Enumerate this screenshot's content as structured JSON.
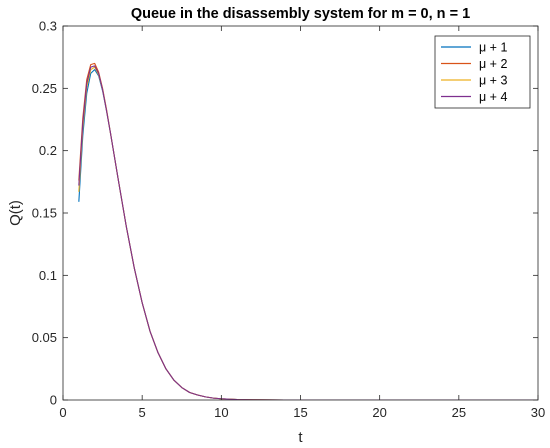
{
  "chart_data": {
    "type": "line",
    "title": "Queue in the disassembly system for m = 0, n = 1",
    "xlabel": "t",
    "ylabel": "Q(t)",
    "xlim": [
      0,
      30
    ],
    "ylim": [
      0,
      0.3
    ],
    "xticks": [
      "0",
      "5",
      "10",
      "15",
      "20",
      "25",
      "30"
    ],
    "yticks": [
      "0",
      "0.05",
      "0.1",
      "0.15",
      "0.2",
      "0.25",
      "0.3"
    ],
    "grid": false,
    "legend_position": "top-right",
    "series": [
      {
        "name": "μ + 1",
        "color": "#0072BD",
        "x": [
          1.0,
          1.25,
          1.5,
          1.75,
          2.0,
          2.25,
          2.5,
          2.75,
          3.0,
          3.5,
          4.0,
          4.5,
          5.0,
          5.5,
          6.0,
          6.5,
          7.0,
          7.5,
          8.0,
          8.5,
          9.0,
          9.5,
          10.0,
          11.0,
          12.0,
          13.0,
          14.0,
          16.0,
          20.0,
          25.0,
          30.0
        ],
        "y": [
          0.159,
          0.212,
          0.246,
          0.262,
          0.265,
          0.26,
          0.248,
          0.232,
          0.214,
          0.176,
          0.139,
          0.106,
          0.078,
          0.055,
          0.038,
          0.025,
          0.016,
          0.01,
          0.006,
          0.004,
          0.0025,
          0.0015,
          0.001,
          0.0004,
          0.0002,
          0.0001,
          0.0,
          0.0,
          0.0,
          0.0,
          0.0
        ]
      },
      {
        "name": "μ + 2",
        "color": "#D95319",
        "x": [
          1.0,
          1.25,
          1.5,
          1.75,
          2.0,
          2.25,
          2.5,
          2.75,
          3.0,
          3.5,
          4.0,
          4.5,
          5.0,
          5.5,
          6.0,
          6.5,
          7.0,
          7.5,
          8.0,
          8.5,
          9.0,
          9.5,
          10.0,
          11.0,
          12.0,
          13.0,
          14.0,
          16.0,
          20.0,
          25.0,
          30.0
        ],
        "y": [
          0.176,
          0.226,
          0.257,
          0.269,
          0.27,
          0.263,
          0.25,
          0.233,
          0.214,
          0.176,
          0.139,
          0.106,
          0.078,
          0.055,
          0.038,
          0.025,
          0.016,
          0.01,
          0.006,
          0.004,
          0.0025,
          0.0015,
          0.001,
          0.0004,
          0.0002,
          0.0001,
          0.0,
          0.0,
          0.0,
          0.0,
          0.0
        ]
      },
      {
        "name": "μ + 3",
        "color": "#EDB120",
        "x": [
          1.0,
          1.25,
          1.5,
          1.75,
          2.0,
          2.25,
          2.5,
          2.75,
          3.0,
          3.5,
          4.0,
          4.5,
          5.0,
          5.5,
          6.0,
          6.5,
          7.0,
          7.5,
          8.0,
          8.5,
          9.0,
          9.5,
          10.0,
          11.0,
          12.0,
          13.0,
          14.0,
          16.0,
          20.0,
          25.0,
          30.0
        ],
        "y": [
          0.167,
          0.218,
          0.251,
          0.265,
          0.267,
          0.261,
          0.249,
          0.232,
          0.214,
          0.176,
          0.139,
          0.106,
          0.078,
          0.055,
          0.038,
          0.025,
          0.016,
          0.01,
          0.006,
          0.004,
          0.0025,
          0.0015,
          0.001,
          0.0004,
          0.0002,
          0.0001,
          0.0,
          0.0,
          0.0,
          0.0,
          0.0
        ]
      },
      {
        "name": "μ + 4",
        "color": "#7E2F8E",
        "x": [
          1.0,
          1.25,
          1.5,
          1.75,
          2.0,
          2.25,
          2.5,
          2.75,
          3.0,
          3.5,
          4.0,
          4.5,
          5.0,
          5.5,
          6.0,
          6.5,
          7.0,
          7.5,
          8.0,
          8.5,
          9.0,
          9.5,
          10.0,
          11.0,
          12.0,
          13.0,
          14.0,
          16.0,
          20.0,
          25.0,
          30.0
        ],
        "y": [
          0.172,
          0.222,
          0.254,
          0.267,
          0.268,
          0.262,
          0.249,
          0.232,
          0.214,
          0.176,
          0.139,
          0.106,
          0.078,
          0.055,
          0.038,
          0.025,
          0.016,
          0.01,
          0.006,
          0.004,
          0.0025,
          0.0015,
          0.001,
          0.0004,
          0.0002,
          0.0001,
          0.0,
          0.0,
          0.0,
          0.0,
          0.0
        ]
      }
    ]
  }
}
